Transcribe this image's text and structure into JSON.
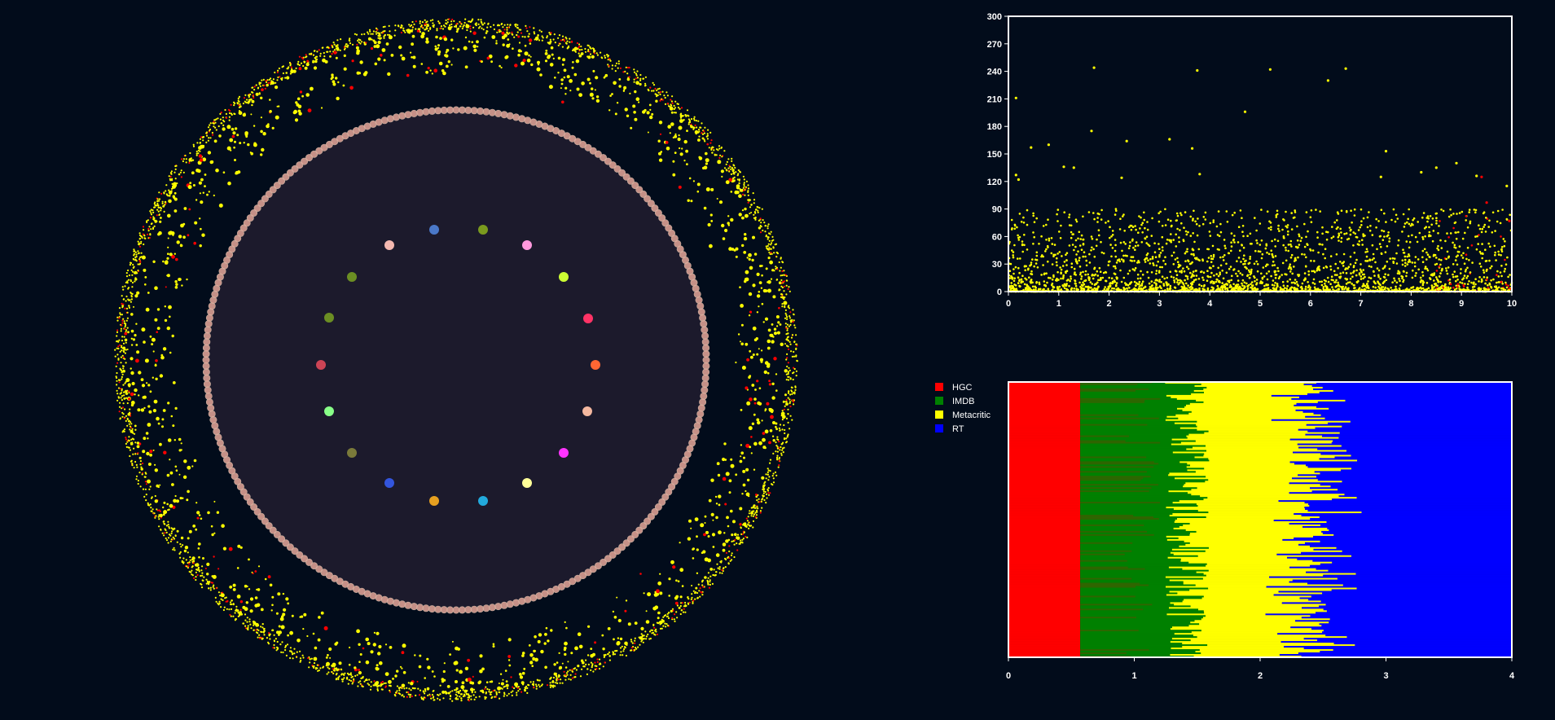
{
  "colors": {
    "background": "#020c1b",
    "hgc": "#ff0000",
    "imdb": "#008000",
    "metacritic": "#ffff00",
    "rt": "#0000ff",
    "axis": "#ffffff"
  },
  "chart_data": [
    {
      "type": "network",
      "description_layout": "radial",
      "ring_outer": {
        "point_colors": [
          "#ffff00",
          "#ff0000"
        ]
      },
      "ring_inner": {
        "node_color": "#e8a89a"
      },
      "hubs": [
        {
          "color": "#6b8e23"
        },
        {
          "color": "#4a78c8"
        },
        {
          "color": "#f4b8b0"
        },
        {
          "color": "#ff99dd"
        },
        {
          "color": "#7a9a1e"
        },
        {
          "color": "#ccff33"
        },
        {
          "color": "#6b8e23"
        },
        {
          "color": "#ff3366"
        },
        {
          "color": "#cc4455"
        },
        {
          "color": "#ff6633"
        },
        {
          "color": "#88ff88"
        },
        {
          "color": "#f4b8a0"
        },
        {
          "color": "#ff33ff"
        },
        {
          "color": "#7a7a3a"
        },
        {
          "color": "#3355dd"
        },
        {
          "color": "#ffff99"
        },
        {
          "color": "#e6a020"
        },
        {
          "color": "#22aadd"
        }
      ]
    },
    {
      "type": "scatter",
      "xlim": [
        0,
        10
      ],
      "ylim": [
        0,
        300
      ],
      "xticks": [
        0,
        1,
        2,
        3,
        4,
        5,
        6,
        7,
        8,
        9,
        10
      ],
      "yticks": [
        0,
        30,
        60,
        90,
        120,
        150,
        180,
        210,
        240,
        270,
        300
      ],
      "grid": false,
      "series": [
        {
          "color": "#ffff00",
          "outliers": [
            [
              0.15,
              211
            ],
            [
              0.15,
              127
            ],
            [
              0.2,
              122
            ],
            [
              0.45,
              157
            ],
            [
              0.8,
              160
            ],
            [
              1.1,
              136
            ],
            [
              1.3,
              135
            ],
            [
              1.65,
              175
            ],
            [
              1.7,
              244
            ],
            [
              2.35,
              164
            ],
            [
              2.25,
              124
            ],
            [
              3.2,
              166
            ],
            [
              3.65,
              156
            ],
            [
              3.75,
              241
            ],
            [
              4.7,
              196
            ],
            [
              5.2,
              242
            ],
            [
              6.35,
              230
            ],
            [
              6.7,
              243
            ],
            [
              7.5,
              153
            ],
            [
              8.2,
              130
            ],
            [
              8.5,
              135
            ],
            [
              8.9,
              140
            ],
            [
              9.9,
              115
            ],
            [
              9.3,
              126
            ],
            [
              7.4,
              125
            ],
            [
              3.8,
              128
            ]
          ]
        },
        {
          "color": "#ff0000",
          "outliers": [
            [
              9.4,
              125
            ],
            [
              9.5,
              97
            ],
            [
              9.95,
              77
            ]
          ]
        }
      ]
    },
    {
      "type": "bar",
      "orientation": "horizontal-stacked",
      "xlim": [
        0,
        4
      ],
      "xticks": [
        0,
        1,
        2,
        3,
        4
      ],
      "legend_position": "left",
      "series": [
        {
          "name": "HGC",
          "color": "#ff0000"
        },
        {
          "name": "IMDB",
          "color": "#008000"
        },
        {
          "name": "Metacritic",
          "color": "#ffff00"
        },
        {
          "name": "RT",
          "color": "#0000ff"
        }
      ]
    }
  ]
}
